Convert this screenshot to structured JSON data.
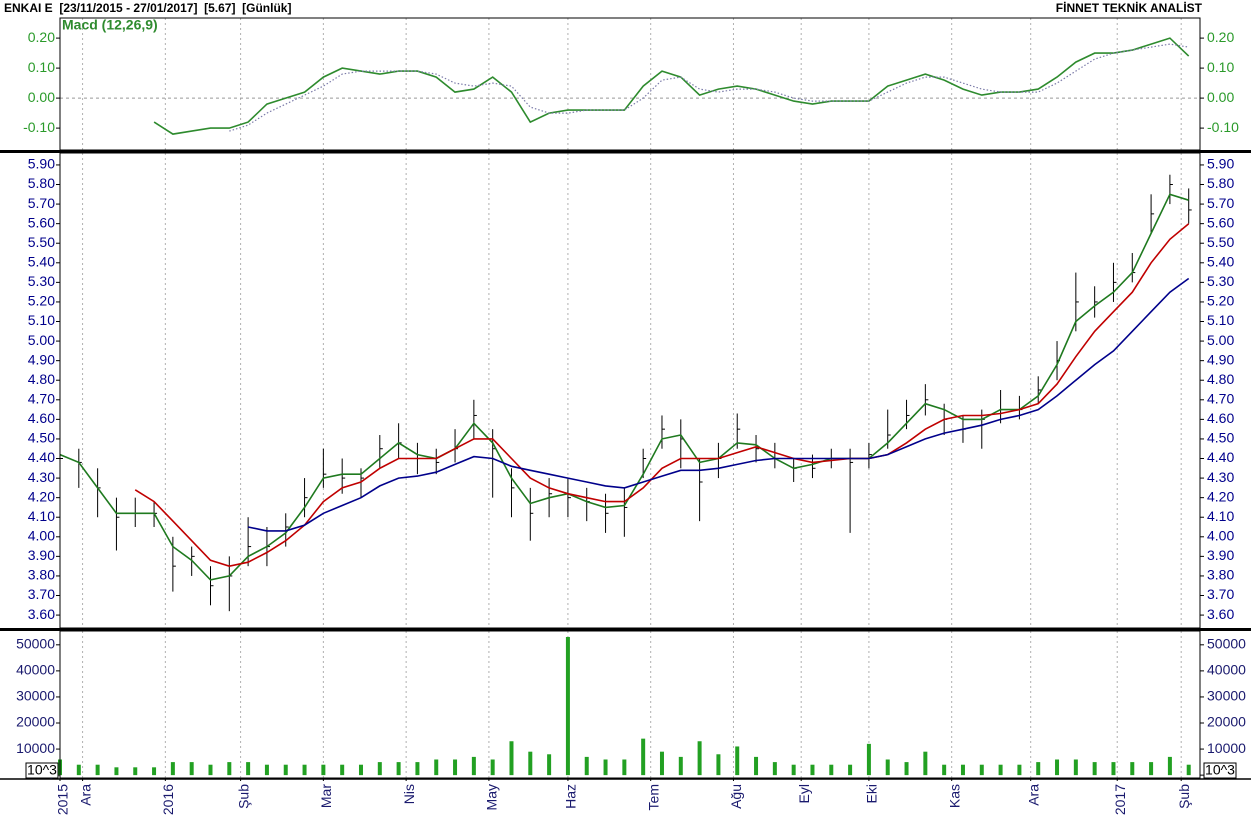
{
  "header": {
    "title": "ENKAI E  [23/11/2015 - 27/01/2017]  [5.67]  [Günlük]",
    "source": "FİNNET TEKNİK ANALİST"
  },
  "chart_data": [
    {
      "type": "line",
      "x": [
        0,
        5,
        10,
        15,
        20,
        25,
        30,
        35,
        40,
        45,
        50,
        55,
        60,
        65,
        70,
        75,
        80,
        85,
        90,
        95,
        100,
        105,
        110,
        115,
        120,
        125,
        130,
        135,
        140,
        145,
        150,
        155,
        160,
        165,
        170,
        175,
        180,
        185,
        190,
        195,
        200,
        205,
        210,
        215,
        220,
        225,
        230,
        235,
        240,
        245,
        250,
        255,
        260,
        265,
        270,
        275,
        280,
        285,
        290,
        295,
        300
      ],
      "xlim": [
        0,
        303
      ],
      "ylim": [
        -0.173,
        0.267
      ],
      "yticks": [
        {
          "value": 0.2,
          "label": "0.20"
        },
        {
          "value": 0.1,
          "label": "0.10"
        },
        {
          "value": 0,
          "label": "0.00"
        },
        {
          "value": -0.1,
          "label": "-0.10"
        }
      ],
      "zero_line": true,
      "tick_color": "#2a9a2a",
      "series": [
        {
          "name": "Macd (12,26,9)",
          "color": "#2e8b2e",
          "values": [
            null,
            null,
            null,
            null,
            null,
            -0.08,
            -0.12,
            -0.11,
            -0.1,
            -0.1,
            -0.08,
            -0.02,
            0.0,
            0.02,
            0.07,
            0.1,
            0.09,
            0.08,
            0.09,
            0.09,
            0.07,
            0.02,
            0.03,
            0.07,
            0.02,
            -0.08,
            -0.05,
            -0.04,
            -0.04,
            -0.04,
            -0.04,
            0.04,
            0.09,
            0.07,
            0.01,
            0.03,
            0.04,
            0.03,
            0.01,
            -0.01,
            -0.02,
            -0.01,
            -0.01,
            -0.01,
            0.04,
            0.06,
            0.08,
            0.06,
            0.03,
            0.01,
            0.02,
            0.02,
            0.03,
            0.07,
            0.12,
            0.15,
            0.15,
            0.16,
            0.18,
            0.2,
            0.14
          ]
        },
        {
          "color": "#7a7aa8",
          "style": "dotted",
          "values": [
            null,
            null,
            null,
            null,
            null,
            null,
            null,
            null,
            null,
            -0.11,
            -0.09,
            -0.05,
            -0.02,
            0.01,
            0.04,
            0.08,
            0.09,
            0.09,
            0.09,
            0.09,
            0.08,
            0.05,
            0.04,
            0.05,
            0.04,
            -0.03,
            -0.05,
            -0.05,
            -0.04,
            -0.04,
            -0.04,
            0.0,
            0.06,
            0.07,
            0.03,
            0.02,
            0.03,
            0.03,
            0.02,
            0.0,
            -0.01,
            -0.01,
            -0.01,
            -0.01,
            0.02,
            0.05,
            0.07,
            0.07,
            0.05,
            0.03,
            0.02,
            0.02,
            0.02,
            0.05,
            0.09,
            0.13,
            0.15,
            0.16,
            0.17,
            0.18,
            0.17
          ]
        }
      ]
    },
    {
      "type": "ohlc",
      "x": [
        0,
        5,
        10,
        15,
        20,
        25,
        30,
        35,
        40,
        45,
        50,
        55,
        60,
        65,
        70,
        75,
        80,
        85,
        90,
        95,
        100,
        105,
        110,
        115,
        120,
        125,
        130,
        135,
        140,
        145,
        150,
        155,
        160,
        165,
        170,
        175,
        180,
        185,
        190,
        195,
        200,
        205,
        210,
        215,
        220,
        225,
        230,
        235,
        240,
        245,
        250,
        255,
        260,
        265,
        270,
        275,
        280,
        285,
        290,
        295,
        300
      ],
      "xlim": [
        0,
        303
      ],
      "ylim": [
        3.534,
        5.961
      ],
      "color": "#000000",
      "tick_color": "#00008b",
      "yticks": [
        {
          "value": 5.9,
          "label": "5.90"
        },
        {
          "value": 5.8,
          "label": "5.80"
        },
        {
          "value": 5.7,
          "label": "5.70"
        },
        {
          "value": 5.6,
          "label": "5.60"
        },
        {
          "value": 5.5,
          "label": "5.50"
        },
        {
          "value": 5.4,
          "label": "5.40"
        },
        {
          "value": 5.3,
          "label": "5.30"
        },
        {
          "value": 5.2,
          "label": "5.20"
        },
        {
          "value": 5.1,
          "label": "5.10"
        },
        {
          "value": 5.0,
          "label": "5.00"
        },
        {
          "value": 4.9,
          "label": "4.90"
        },
        {
          "value": 4.8,
          "label": "4.80"
        },
        {
          "value": 4.7,
          "label": "4.70"
        },
        {
          "value": 4.6,
          "label": "4.60"
        },
        {
          "value": 4.5,
          "label": "4.50"
        },
        {
          "value": 4.4,
          "label": "4.40"
        },
        {
          "value": 4.3,
          "label": "4.30"
        },
        {
          "value": 4.2,
          "label": "4.20"
        },
        {
          "value": 4.1,
          "label": "4.10"
        },
        {
          "value": 4.0,
          "label": "4.00"
        },
        {
          "value": 3.9,
          "label": "3.90"
        },
        {
          "value": 3.8,
          "label": "3.80"
        },
        {
          "value": 3.7,
          "label": "3.70"
        },
        {
          "value": 3.6,
          "label": "3.60"
        }
      ],
      "high": [
        4.62,
        4.45,
        4.35,
        4.2,
        4.2,
        4.18,
        4.0,
        3.95,
        3.85,
        3.9,
        4.1,
        4.05,
        4.12,
        4.3,
        4.45,
        4.4,
        4.35,
        4.52,
        4.58,
        4.48,
        4.45,
        4.55,
        4.7,
        4.55,
        4.35,
        4.25,
        4.3,
        4.3,
        4.25,
        4.22,
        4.25,
        4.45,
        4.62,
        4.6,
        4.4,
        4.48,
        4.63,
        4.52,
        4.48,
        4.4,
        4.42,
        4.45,
        4.45,
        4.48,
        4.65,
        4.7,
        4.78,
        4.68,
        4.62,
        4.65,
        4.75,
        4.72,
        4.82,
        5.0,
        5.35,
        5.28,
        5.4,
        5.45,
        5.75,
        5.85,
        5.78
      ],
      "low": [
        4.1,
        4.25,
        4.1,
        3.93,
        4.05,
        4.05,
        3.72,
        3.8,
        3.65,
        3.62,
        3.85,
        3.85,
        3.95,
        4.1,
        4.25,
        4.22,
        4.2,
        4.35,
        4.4,
        4.32,
        4.32,
        4.38,
        4.5,
        4.2,
        4.1,
        3.98,
        4.1,
        4.1,
        4.08,
        4.02,
        4.0,
        4.3,
        4.45,
        4.35,
        4.08,
        4.3,
        4.45,
        4.38,
        4.35,
        4.28,
        4.3,
        4.35,
        4.02,
        4.35,
        4.45,
        4.55,
        4.62,
        4.52,
        4.48,
        4.45,
        4.58,
        4.6,
        4.68,
        4.8,
        5.05,
        5.12,
        5.2,
        5.3,
        5.55,
        5.7,
        5.6
      ],
      "close": [
        4.4,
        4.38,
        4.25,
        4.1,
        4.12,
        4.12,
        3.85,
        3.9,
        3.75,
        3.8,
        3.95,
        3.95,
        4.05,
        4.2,
        4.32,
        4.3,
        4.3,
        4.45,
        4.48,
        4.4,
        4.38,
        4.45,
        4.62,
        4.45,
        4.25,
        4.12,
        4.22,
        4.2,
        4.18,
        4.12,
        4.15,
        4.4,
        4.55,
        4.5,
        4.28,
        4.4,
        4.55,
        4.45,
        4.4,
        4.35,
        4.35,
        4.4,
        4.38,
        4.42,
        4.52,
        4.62,
        4.7,
        4.6,
        4.55,
        4.6,
        4.65,
        4.65,
        4.75,
        4.9,
        5.2,
        5.2,
        5.3,
        5.35,
        5.65,
        5.8,
        5.67
      ],
      "series": [
        {
          "color": "#1f7a1f",
          "values": [
            4.42,
            4.38,
            4.25,
            4.12,
            4.12,
            4.12,
            3.95,
            3.88,
            3.78,
            3.8,
            3.9,
            3.95,
            4.02,
            4.15,
            4.3,
            4.32,
            4.32,
            4.4,
            4.48,
            4.42,
            4.4,
            4.45,
            4.58,
            4.48,
            4.3,
            4.17,
            4.2,
            4.22,
            4.18,
            4.15,
            4.16,
            4.32,
            4.5,
            4.52,
            4.38,
            4.4,
            4.48,
            4.47,
            4.4,
            4.35,
            4.37,
            4.4,
            4.4,
            4.4,
            4.48,
            4.58,
            4.68,
            4.65,
            4.6,
            4.6,
            4.65,
            4.65,
            4.72,
            4.88,
            5.1,
            5.18,
            5.25,
            5.35,
            5.55,
            5.75,
            5.72
          ]
        },
        {
          "color": "#c00000",
          "values": [
            null,
            null,
            null,
            null,
            4.24,
            4.18,
            4.08,
            3.98,
            3.88,
            3.85,
            3.87,
            3.92,
            3.98,
            4.06,
            4.18,
            4.25,
            4.28,
            4.35,
            4.4,
            4.4,
            4.4,
            4.45,
            4.5,
            4.5,
            4.4,
            4.3,
            4.25,
            4.22,
            4.2,
            4.18,
            4.18,
            4.25,
            4.35,
            4.4,
            4.4,
            4.4,
            4.43,
            4.46,
            4.43,
            4.4,
            4.38,
            4.39,
            4.4,
            4.4,
            4.42,
            4.48,
            4.55,
            4.6,
            4.62,
            4.62,
            4.63,
            4.65,
            4.68,
            4.78,
            4.92,
            5.05,
            5.15,
            5.25,
            5.4,
            5.52,
            5.6
          ]
        },
        {
          "color": "#00008b",
          "values": [
            null,
            null,
            null,
            null,
            null,
            null,
            null,
            null,
            null,
            null,
            4.05,
            4.03,
            4.03,
            4.06,
            4.12,
            4.16,
            4.2,
            4.26,
            4.3,
            4.31,
            4.33,
            4.37,
            4.41,
            4.4,
            4.36,
            4.34,
            4.32,
            4.3,
            4.28,
            4.26,
            4.25,
            4.28,
            4.31,
            4.34,
            4.34,
            4.35,
            4.37,
            4.39,
            4.4,
            4.4,
            4.4,
            4.4,
            4.4,
            4.4,
            4.42,
            4.46,
            4.5,
            4.53,
            4.55,
            4.57,
            4.6,
            4.62,
            4.65,
            4.72,
            4.8,
            4.88,
            4.95,
            5.05,
            5.15,
            5.25,
            5.32
          ]
        }
      ]
    },
    {
      "type": "bar",
      "x": [
        0,
        5,
        10,
        15,
        20,
        25,
        30,
        35,
        40,
        45,
        50,
        55,
        60,
        65,
        70,
        75,
        80,
        85,
        90,
        95,
        100,
        105,
        110,
        115,
        120,
        125,
        130,
        135,
        140,
        145,
        150,
        155,
        160,
        165,
        170,
        175,
        180,
        185,
        190,
        195,
        200,
        205,
        210,
        215,
        220,
        225,
        230,
        235,
        240,
        245,
        250,
        255,
        260,
        265,
        270,
        275,
        280,
        285,
        290,
        295,
        300
      ],
      "xlim": [
        0,
        303
      ],
      "ylim": [
        -1100,
        55300
      ],
      "color": "#22a022",
      "tick_color": "#1a1a6e",
      "yticks": [
        50000,
        40000,
        30000,
        20000,
        10000,
        0
      ],
      "unit_label": "10^3",
      "values": [
        6000,
        4000,
        4000,
        3000,
        3000,
        3000,
        5000,
        5000,
        4000,
        5000,
        5000,
        4000,
        4000,
        4000,
        4000,
        4000,
        4000,
        5000,
        5000,
        5000,
        6000,
        6000,
        7000,
        6000,
        13000,
        9000,
        8000,
        53000,
        7000,
        6000,
        6000,
        14000,
        9000,
        7000,
        13000,
        8000,
        11000,
        7000,
        5000,
        4000,
        4000,
        4000,
        4000,
        12000,
        6000,
        5000,
        9000,
        4000,
        4000,
        4000,
        4000,
        4000,
        5000,
        6000,
        6000,
        5000,
        5000,
        5000,
        5000,
        7000,
        4000
      ],
      "xticks": [
        {
          "value": 0,
          "label": "2015"
        },
        {
          "value": 6,
          "label": "Ara"
        },
        {
          "value": 28,
          "label": "2016"
        },
        {
          "value": 48,
          "label": "Şub"
        },
        {
          "value": 70,
          "label": "Mar"
        },
        {
          "value": 92,
          "label": "Nis"
        },
        {
          "value": 114,
          "label": "May"
        },
        {
          "value": 135,
          "label": "Haz"
        },
        {
          "value": 157,
          "label": "Tem"
        },
        {
          "value": 179,
          "label": "Ağu"
        },
        {
          "value": 197,
          "label": "Eyl"
        },
        {
          "value": 215,
          "label": "Eki"
        },
        {
          "value": 237,
          "label": "Kas"
        },
        {
          "value": 258,
          "label": "Ara"
        },
        {
          "value": 281,
          "label": "2017"
        },
        {
          "value": 298,
          "label": "Şub"
        }
      ]
    }
  ]
}
